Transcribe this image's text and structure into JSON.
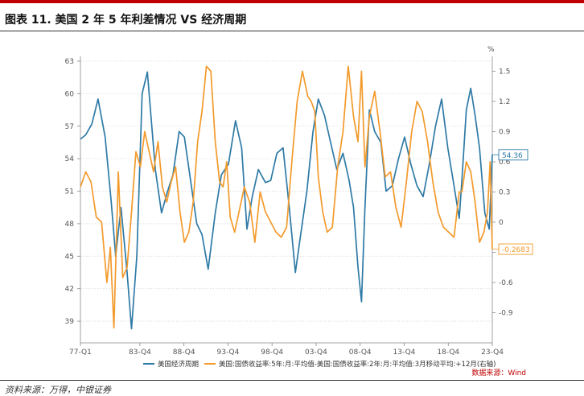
{
  "figure": {
    "title": "图表 11. 美国 2 年 5 年利差情况 VS 经济周期",
    "source_note": "数据来源：Wind",
    "footer_source": "资料来源：万得，中银证券"
  },
  "chart_data": {
    "type": "line",
    "x_tick_labels": [
      "77-Q1",
      "83-Q4",
      "88-Q4",
      "93-Q4",
      "98-Q4",
      "03-Q4",
      "08-Q4",
      "13-Q4",
      "18-Q4",
      "23-Q4"
    ],
    "x_tick_years": [
      1977.0,
      1983.75,
      1988.75,
      1993.75,
      1998.75,
      2003.75,
      2008.75,
      2013.75,
      2018.75,
      2023.75
    ],
    "xlim": [
      1977.0,
      2023.75
    ],
    "left_axis": {
      "unit": "",
      "ylim": [
        37,
        63
      ],
      "ticks": [
        39,
        42,
        45,
        48,
        51,
        54,
        57,
        60,
        63
      ]
    },
    "right_axis": {
      "unit": "%",
      "ylim": [
        -1.2,
        1.6
      ],
      "ticks": [
        "-0.9",
        "-0.6",
        "-0.3",
        "0",
        "0.3",
        "0.6",
        "0.9",
        "1.2",
        "1.5"
      ],
      "tick_values": [
        -0.9,
        -0.6,
        -0.3,
        0,
        0.3,
        0.6,
        0.9,
        1.2,
        1.5
      ]
    },
    "grid": true,
    "legend_position": "bottom",
    "series": [
      {
        "name": "美国经济周期",
        "axis": "left",
        "color": "#2e7aa6",
        "end_label": "54.36",
        "x": [
          1977.0,
          1977.6,
          1978.3,
          1979.0,
          1979.8,
          1980.5,
          1981.0,
          1981.6,
          1982.3,
          1982.8,
          1983.4,
          1984.0,
          1984.6,
          1985.5,
          1986.2,
          1986.9,
          1987.5,
          1988.2,
          1988.8,
          1989.5,
          1990.2,
          1990.8,
          1991.5,
          1992.3,
          1993.0,
          1993.8,
          1994.6,
          1995.3,
          1995.9,
          1996.5,
          1997.2,
          1998.0,
          1998.6,
          1999.3,
          2000.0,
          2000.7,
          2001.4,
          2002.0,
          2002.7,
          2003.4,
          2004.0,
          2004.7,
          2005.4,
          2006.1,
          2006.8,
          2007.5,
          2008.0,
          2008.5,
          2008.9,
          2009.3,
          2009.8,
          2010.4,
          2011.1,
          2011.7,
          2012.4,
          2013.1,
          2013.8,
          2014.5,
          2015.2,
          2015.9,
          2016.6,
          2017.3,
          2018.0,
          2018.7,
          2019.4,
          2020.0,
          2020.3,
          2020.8,
          2021.3,
          2021.8,
          2022.3,
          2022.9,
          2023.4,
          2023.75
        ],
        "y": [
          55.8,
          56.2,
          57.2,
          59.5,
          56.0,
          50.0,
          45.0,
          49.5,
          43.5,
          38.3,
          45.0,
          60.0,
          62.0,
          53.0,
          49.0,
          51.0,
          52.5,
          56.5,
          56.0,
          52.0,
          48.0,
          47.0,
          43.8,
          49.0,
          52.5,
          53.5,
          57.5,
          55.0,
          47.5,
          50.5,
          53.0,
          51.8,
          52.0,
          54.5,
          55.0,
          49.5,
          43.5,
          47.0,
          51.0,
          56.5,
          59.5,
          58.0,
          55.5,
          53.0,
          54.5,
          52.0,
          49.5,
          44.0,
          40.8,
          49.5,
          58.5,
          56.5,
          55.5,
          51.0,
          51.5,
          54.0,
          56.0,
          53.5,
          51.5,
          50.5,
          53.5,
          57.0,
          59.5,
          55.0,
          51.5,
          48.5,
          52.0,
          58.5,
          60.5,
          58.0,
          55.0,
          49.0,
          47.5,
          54.36
        ]
      },
      {
        "name": "美国:国债收益率:5年:月:平均值-美国:国债收益率:2年:月:平均值:3月移动平均:+12月(右轴)",
        "axis": "right",
        "color": "#f39a2b",
        "end_label": "-0.2683",
        "x": [
          1977.0,
          1977.6,
          1978.2,
          1978.8,
          1979.4,
          1980.0,
          1980.4,
          1980.8,
          1981.3,
          1981.8,
          1982.3,
          1982.8,
          1983.3,
          1983.8,
          1984.3,
          1984.8,
          1985.3,
          1985.8,
          1986.3,
          1986.8,
          1987.3,
          1987.8,
          1988.3,
          1988.8,
          1989.3,
          1989.8,
          1990.3,
          1990.8,
          1991.3,
          1991.8,
          1992.3,
          1992.8,
          1993.2,
          1993.6,
          1994.0,
          1994.5,
          1995.0,
          1995.6,
          1996.2,
          1996.8,
          1997.4,
          1998.0,
          1998.6,
          1999.2,
          1999.8,
          2000.4,
          2001.0,
          2001.6,
          2002.2,
          2002.8,
          2003.2,
          2003.6,
          2004.0,
          2004.5,
          2005.0,
          2005.6,
          2006.2,
          2006.8,
          2007.4,
          2008.0,
          2008.5,
          2008.9,
          2009.3,
          2009.8,
          2010.4,
          2011.0,
          2011.6,
          2012.2,
          2012.8,
          2013.4,
          2014.0,
          2014.6,
          2015.2,
          2015.8,
          2016.4,
          2017.0,
          2017.6,
          2018.2,
          2018.8,
          2019.4,
          2020.0,
          2020.3,
          2020.8,
          2021.3,
          2021.8,
          2022.3,
          2022.8,
          2023.2,
          2023.5,
          2023.75
        ],
        "y": [
          0.35,
          0.5,
          0.4,
          0.05,
          0.0,
          -0.6,
          -0.25,
          -1.05,
          0.5,
          -0.55,
          -0.45,
          0.1,
          0.7,
          0.55,
          0.9,
          0.7,
          0.5,
          0.8,
          0.35,
          0.2,
          0.4,
          0.55,
          0.1,
          -0.2,
          -0.1,
          0.2,
          0.8,
          1.1,
          1.55,
          1.5,
          0.8,
          0.4,
          0.35,
          0.6,
          0.05,
          -0.1,
          0.1,
          0.35,
          0.2,
          -0.2,
          0.3,
          0.1,
          0.0,
          -0.1,
          -0.15,
          -0.05,
          0.6,
          1.2,
          1.5,
          1.25,
          1.2,
          1.1,
          0.45,
          0.1,
          -0.1,
          -0.05,
          0.55,
          0.9,
          1.55,
          1.05,
          0.8,
          1.5,
          0.55,
          1.05,
          1.3,
          0.9,
          0.45,
          0.5,
          0.15,
          -0.05,
          0.4,
          0.9,
          1.2,
          1.1,
          0.8,
          0.4,
          0.1,
          -0.05,
          -0.1,
          -0.15,
          0.3,
          0.3,
          0.6,
          0.5,
          0.2,
          -0.2,
          -0.1,
          0.1,
          0.6,
          -0.2683
        ]
      }
    ]
  }
}
